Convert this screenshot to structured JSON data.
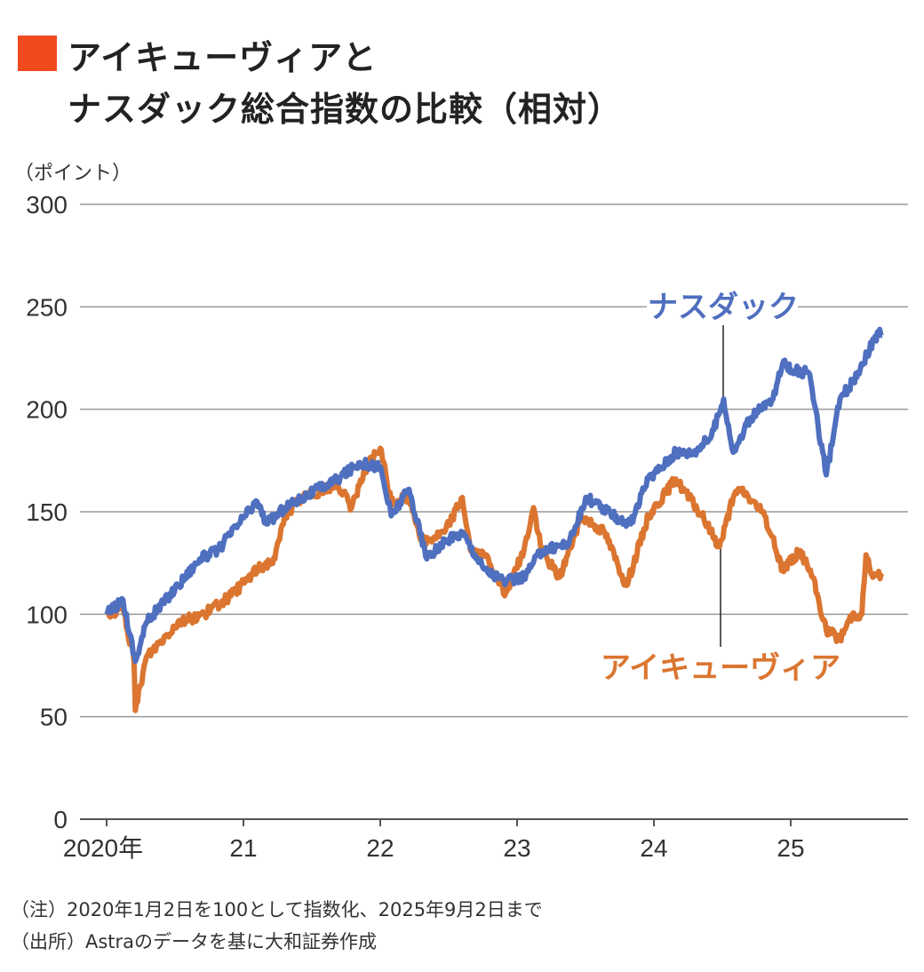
{
  "title_line1": "アイキューヴィアと",
  "title_line2": "ナスダック総合指数の比較（相対）",
  "notes": [
    "（注）2020年1月2日を100として指数化、2025年9月2日まで",
    "（出所）Astraのデータを基に大和証券作成"
  ],
  "colors": {
    "accent": "#f04a1e",
    "nasdaq": "#4f6fbf",
    "iqvia": "#db7530",
    "grid": "#999999"
  },
  "chart_data": {
    "type": "line",
    "title": "アイキューヴィアとナスダック総合指数の比較（相対）",
    "ylabel": "（ポイント）",
    "ylim": [
      0,
      300
    ],
    "yticks": [
      0,
      50,
      100,
      150,
      200,
      250,
      300
    ],
    "xlim": [
      2020,
      2025.85
    ],
    "xticks": [
      {
        "v": 2020,
        "label": "2020年"
      },
      {
        "v": 2021,
        "label": "21"
      },
      {
        "v": 2022,
        "label": "22"
      },
      {
        "v": 2023,
        "label": "23"
      },
      {
        "v": 2024,
        "label": "24"
      },
      {
        "v": 2025,
        "label": "25"
      }
    ],
    "grid": true,
    "series": [
      {
        "name": "ナスダック",
        "color": "#4f6fbf",
        "points": [
          [
            2020,
            100
          ],
          [
            2020.12,
            107
          ],
          [
            2020.21,
            77
          ],
          [
            2020.29,
            96
          ],
          [
            2020.52,
            114
          ],
          [
            2020.68,
            127
          ],
          [
            2020.81,
            131
          ],
          [
            2021.01,
            148
          ],
          [
            2021.1,
            155
          ],
          [
            2021.17,
            144
          ],
          [
            2021.3,
            152
          ],
          [
            2021.43,
            157
          ],
          [
            2021.69,
            166
          ],
          [
            2021.85,
            174
          ],
          [
            2022,
            172
          ],
          [
            2022.08,
            148
          ],
          [
            2022.21,
            161
          ],
          [
            2022.34,
            127
          ],
          [
            2022.47,
            135
          ],
          [
            2022.6,
            140
          ],
          [
            2022.76,
            122
          ],
          [
            2022.92,
            116
          ],
          [
            2023.05,
            118
          ],
          [
            2023.18,
            131
          ],
          [
            2023.38,
            135
          ],
          [
            2023.51,
            157
          ],
          [
            2023.7,
            148
          ],
          [
            2023.83,
            144
          ],
          [
            2023.96,
            166
          ],
          [
            2024.16,
            179
          ],
          [
            2024.29,
            179
          ],
          [
            2024.42,
            187
          ],
          [
            2024.51,
            205
          ],
          [
            2024.58,
            179
          ],
          [
            2024.71,
            196
          ],
          [
            2024.87,
            205
          ],
          [
            2024.94,
            222
          ],
          [
            2025.07,
            218
          ],
          [
            2025.13,
            218
          ],
          [
            2025.2,
            192
          ],
          [
            2025.26,
            168
          ],
          [
            2025.36,
            205
          ],
          [
            2025.45,
            213
          ],
          [
            2025.65,
            239
          ],
          [
            2025.67,
            236
          ]
        ]
      },
      {
        "name": "アイキューヴィア",
        "color": "#db7530",
        "points": [
          [
            2020,
            100
          ],
          [
            2020.12,
            103
          ],
          [
            2020.2,
            77
          ],
          [
            2020.21,
            53
          ],
          [
            2020.29,
            79
          ],
          [
            2020.52,
            96
          ],
          [
            2020.71,
            100
          ],
          [
            2020.91,
            109
          ],
          [
            2021.1,
            122
          ],
          [
            2021.23,
            127
          ],
          [
            2021.3,
            148
          ],
          [
            2021.43,
            157
          ],
          [
            2021.69,
            163
          ],
          [
            2021.79,
            152
          ],
          [
            2021.88,
            170
          ],
          [
            2022,
            181
          ],
          [
            2022.08,
            155
          ],
          [
            2022.21,
            157
          ],
          [
            2022.31,
            135
          ],
          [
            2022.47,
            140
          ],
          [
            2022.6,
            157
          ],
          [
            2022.66,
            131
          ],
          [
            2022.79,
            127
          ],
          [
            2022.91,
            109
          ],
          [
            2023.05,
            131
          ],
          [
            2023.12,
            152
          ],
          [
            2023.18,
            131
          ],
          [
            2023.31,
            118
          ],
          [
            2023.47,
            148
          ],
          [
            2023.64,
            140
          ],
          [
            2023.8,
            114
          ],
          [
            2023.96,
            148
          ],
          [
            2024.16,
            166
          ],
          [
            2024.35,
            148
          ],
          [
            2024.48,
            133
          ],
          [
            2024.58,
            157
          ],
          [
            2024.64,
            161
          ],
          [
            2024.81,
            148
          ],
          [
            2024.94,
            122
          ],
          [
            2025.07,
            131
          ],
          [
            2025.16,
            118
          ],
          [
            2025.26,
            92
          ],
          [
            2025.36,
            88
          ],
          [
            2025.45,
            100
          ],
          [
            2025.52,
            100
          ],
          [
            2025.55,
            129
          ],
          [
            2025.6,
            118
          ],
          [
            2025.67,
            120
          ]
        ]
      }
    ],
    "annotations": [
      {
        "text": "ナスダック",
        "series": "ナスダック"
      },
      {
        "text": "アイキューヴィア",
        "series": "アイキューヴィア"
      }
    ]
  }
}
